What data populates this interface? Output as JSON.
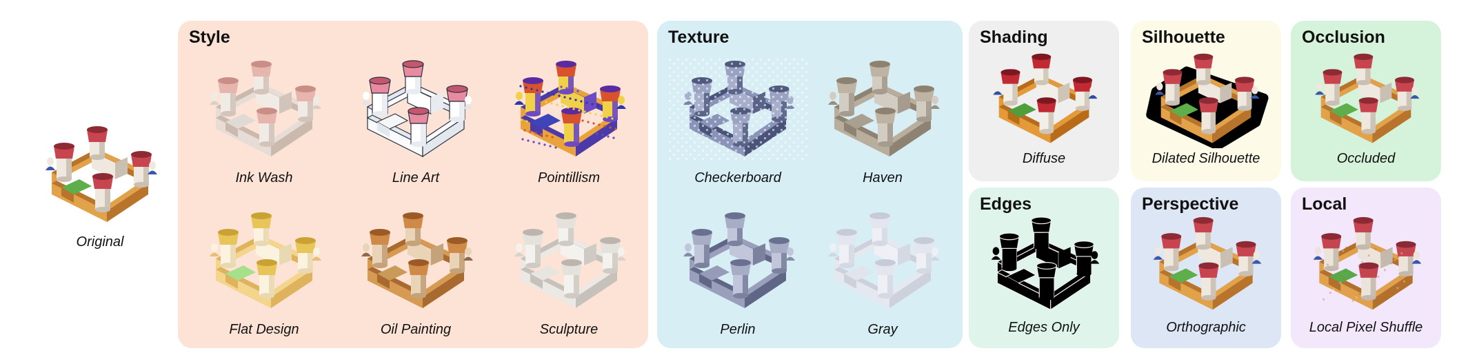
{
  "original": {
    "label": "Original"
  },
  "colors": {
    "style_panel": "#fde3d6",
    "texture_panel": "#d7eef5",
    "shading_panel": "#efefef",
    "silhouette_panel": "#fdfbe8",
    "occlusion_panel": "#d5f3da",
    "edges_panel": "#dff5ec",
    "perspective_panel": "#dde6f4",
    "local_panel": "#f3e7fb"
  },
  "panels": {
    "style": {
      "title": "Style",
      "items": [
        "Ink Wash",
        "Line Art",
        "Pointillism",
        "Flat Design",
        "Oil Painting",
        "Sculpture"
      ]
    },
    "texture": {
      "title": "Texture",
      "items": [
        "Checkerboard",
        "Haven",
        "Perlin",
        "Gray"
      ]
    },
    "shading": {
      "title": "Shading",
      "items": [
        "Diffuse"
      ]
    },
    "silhouette": {
      "title": "Silhouette",
      "items": [
        "Dilated Silhouette"
      ]
    },
    "occlusion": {
      "title": "Occlusion",
      "items": [
        "Occluded"
      ]
    },
    "edges": {
      "title": "Edges",
      "items": [
        "Edges Only"
      ]
    },
    "perspective": {
      "title": "Perspective",
      "items": [
        "Orthographic"
      ]
    },
    "local": {
      "title": "Local",
      "items": [
        "Local Pixel Shuffle"
      ]
    }
  }
}
